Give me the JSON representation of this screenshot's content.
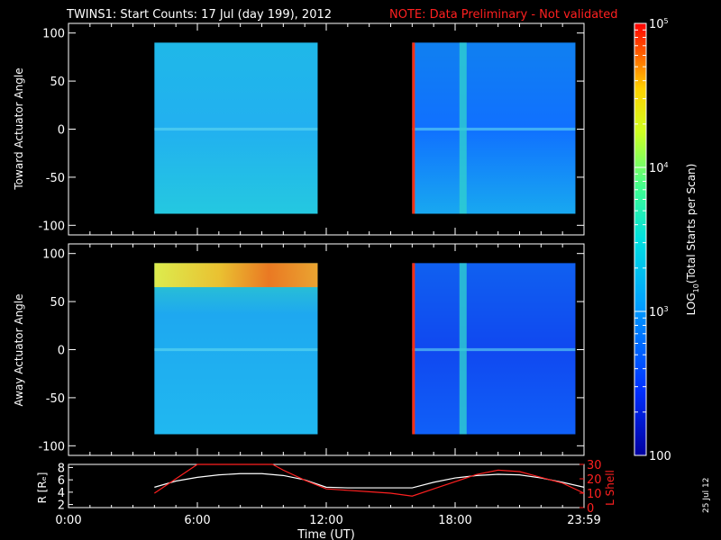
{
  "header": {
    "title": "TWINS1: Start Counts: 17 Jul (day 199), 2012",
    "note": "NOTE: Data Preliminary - Not validated"
  },
  "colorbar": {
    "label_parts": [
      "LOG",
      "10",
      "(Total Starts per Scan)"
    ],
    "range": [
      100,
      100000
    ],
    "scale": "log",
    "ticks": [
      {
        "value": 100,
        "label_main": "100",
        "label_sup": ""
      },
      {
        "value": 1000,
        "label_main": "10",
        "label_sup": "3"
      },
      {
        "value": 10000,
        "label_main": "10",
        "label_sup": "4"
      },
      {
        "value": 100000,
        "label_main": "10",
        "label_sup": "5"
      }
    ]
  },
  "panels": {
    "toward": {
      "ylabel": "Toward Actuator Angle"
    },
    "away": {
      "ylabel": "Away Actuator Angle"
    }
  },
  "orbit": {
    "left_label": "R [Rₑ]",
    "right_label": "L Shell"
  },
  "footer": {
    "xlabel": "Time (UT)",
    "date_stamp": "25 Jul 12"
  },
  "chart_data": [
    {
      "type": "heatmap",
      "name_hint": "toward-actuator-spectrogram",
      "ylabel": "Toward Actuator Angle",
      "x_range_hours": [
        0,
        24
      ],
      "ylim": [
        -110,
        110
      ],
      "yticks": [
        100,
        50,
        0,
        -50,
        -100
      ],
      "x_ticks": [
        "0:00",
        "6:00",
        "12:00",
        "18:00",
        "23:59"
      ],
      "data_blocks": [
        {
          "t_start": 4.0,
          "t_end": 11.6,
          "angle_range": [
            -88,
            90
          ],
          "typical_counts": 900
        },
        {
          "t_start": 16.0,
          "t_end": 23.6,
          "angle_range": [
            -88,
            90
          ],
          "typical_counts": 500
        }
      ]
    },
    {
      "type": "heatmap",
      "name_hint": "away-actuator-spectrogram",
      "ylabel": "Away Actuator Angle",
      "x_range_hours": [
        0,
        24
      ],
      "ylim": [
        -110,
        110
      ],
      "yticks": [
        100,
        50,
        0,
        -50,
        -100
      ],
      "x_ticks": [
        "0:00",
        "6:00",
        "12:00",
        "18:00",
        "23:59"
      ],
      "data_blocks": [
        {
          "t_start": 4.0,
          "t_end": 11.6,
          "angle_range": [
            -88,
            90
          ],
          "typical_counts": 900,
          "hot_band_angle": [
            65,
            90
          ],
          "hot_band_counts": 20000
        },
        {
          "t_start": 16.0,
          "t_end": 23.6,
          "angle_range": [
            -88,
            90
          ],
          "typical_counts": 400
        }
      ]
    },
    {
      "type": "line",
      "name_hint": "orbit-panel",
      "left_yticks": [
        2,
        4,
        6,
        8
      ],
      "right_yticks": [
        0,
        10,
        20,
        30
      ],
      "left_ylim": [
        1.5,
        8.5
      ],
      "right_ylim": [
        0,
        30
      ],
      "series": [
        {
          "name": "R",
          "axis": "left",
          "color": "#ffffff",
          "x": [
            4,
            5,
            6,
            7,
            8,
            9,
            10,
            11,
            12,
            13,
            14,
            15,
            16,
            17,
            18,
            19,
            20,
            21,
            22,
            23,
            24
          ],
          "y": [
            4.8,
            5.8,
            6.4,
            6.8,
            7.0,
            7.0,
            6.7,
            6.0,
            4.8,
            4.7,
            4.7,
            4.7,
            4.7,
            5.6,
            6.3,
            6.7,
            6.9,
            6.8,
            6.3,
            5.6,
            4.8
          ]
        },
        {
          "name": "L Shell",
          "axis": "right",
          "color": "#ff2020",
          "x": [
            4,
            5,
            6,
            9.5,
            10,
            11,
            12,
            13,
            14,
            15,
            16,
            17,
            18,
            19,
            20,
            21,
            22,
            23,
            24
          ],
          "y": [
            10,
            20,
            30,
            30,
            26,
            19,
            13,
            12,
            11,
            10,
            8,
            13,
            18,
            23,
            26,
            25,
            21,
            17,
            10
          ]
        }
      ]
    }
  ]
}
